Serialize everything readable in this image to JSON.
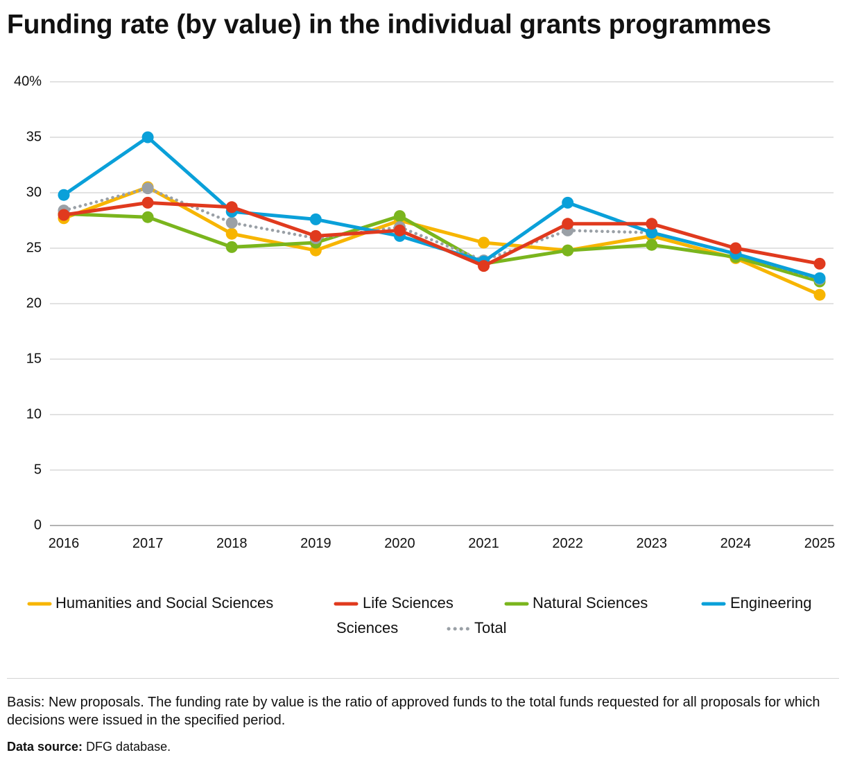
{
  "page": {
    "title": "Funding rate (by value) in the individual grants programmes",
    "note": "Basis: New proposals. The funding rate by value is the ratio of approved funds to the total funds requested for all proposals for which decisions were issued in the specified period.",
    "source_label": "Data source:",
    "source_value": "DFG database."
  },
  "chart_data": {
    "type": "line",
    "title": "Funding rate (by value) in the individual grants programmes",
    "xlabel": "",
    "ylabel": "",
    "ylim": [
      0,
      40
    ],
    "yticks": [
      0,
      5,
      10,
      15,
      20,
      25,
      30,
      35,
      40
    ],
    "ytick_labels": [
      "0",
      "5",
      "10",
      "15",
      "20",
      "25",
      "30",
      "35",
      "40%"
    ],
    "categories": [
      "2016",
      "2017",
      "2018",
      "2019",
      "2020",
      "2021",
      "2022",
      "2023",
      "2024",
      "2025"
    ],
    "grid": true,
    "legend_position": "bottom",
    "series": [
      {
        "name": "Humanities and Social Sciences",
        "color": "#f7b500",
        "style": "solid",
        "values": [
          27.7,
          30.5,
          26.3,
          24.8,
          27.5,
          25.5,
          24.8,
          26.1,
          24.1,
          20.8
        ]
      },
      {
        "name": "Life Sciences",
        "color": "#e03a1e",
        "style": "solid",
        "values": [
          28.0,
          29.1,
          28.7,
          26.1,
          26.6,
          23.4,
          27.2,
          27.2,
          25.0,
          23.6
        ]
      },
      {
        "name": "Natural Sciences",
        "color": "#7ab51d",
        "style": "solid",
        "values": [
          28.1,
          27.8,
          25.1,
          25.5,
          27.9,
          23.6,
          24.8,
          25.3,
          24.2,
          22.0
        ]
      },
      {
        "name": "Engineering Sciences",
        "color": "#0aa0d9",
        "style": "solid",
        "values": [
          29.8,
          35.0,
          28.3,
          27.6,
          26.1,
          23.8,
          29.1,
          26.4,
          24.5,
          22.3
        ]
      },
      {
        "name": "Total",
        "color": "#9aa0a6",
        "style": "dotted",
        "values": [
          28.4,
          30.4,
          27.3,
          25.9,
          26.9,
          23.9,
          26.6,
          26.4,
          24.5,
          22.2
        ]
      }
    ]
  }
}
